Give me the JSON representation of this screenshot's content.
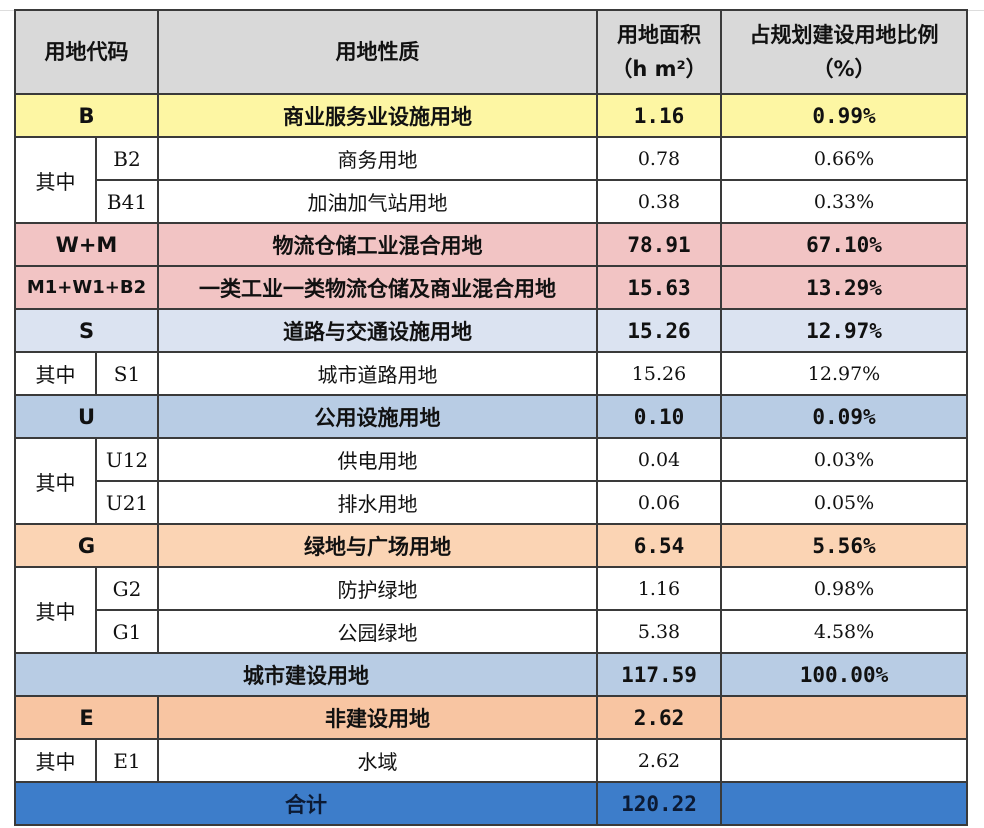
{
  "header": {
    "code": "用地代码",
    "nature": "用地性质",
    "area_line1": "用地面积",
    "area_line2": "（h m²）",
    "ratio_line1": "占规划建设用地比例",
    "ratio_line2": "（%）"
  },
  "rows": {
    "B": {
      "code": "B",
      "name": "商业服务业设施用地",
      "area": "1.16",
      "ratio": "0.99%"
    },
    "B2": {
      "group": "其中",
      "code": "B2",
      "name": "商务用地",
      "area": "0.78",
      "ratio": "0.66%"
    },
    "B41": {
      "code": "B41",
      "name": "加油加气站用地",
      "area": "0.38",
      "ratio": "0.33%"
    },
    "WM": {
      "code": "W+M",
      "name": "物流仓储工业混合用地",
      "area": "78.91",
      "ratio": "67.10%"
    },
    "M1W1B2": {
      "code": "M1+W1+B2",
      "name": "一类工业一类物流仓储及商业混合用地",
      "area": "15.63",
      "ratio": "13.29%"
    },
    "S": {
      "code": "S",
      "name": "道路与交通设施用地",
      "area": "15.26",
      "ratio": "12.97%"
    },
    "S1": {
      "group": "其中",
      "code": "S1",
      "name": "城市道路用地",
      "area": "15.26",
      "ratio": "12.97%"
    },
    "U": {
      "code": "U",
      "name": "公用设施用地",
      "area": "0.10",
      "ratio": "0.09%"
    },
    "U12": {
      "group": "其中",
      "code": "U12",
      "name": "供电用地",
      "area": "0.04",
      "ratio": "0.03%"
    },
    "U21": {
      "code": "U21",
      "name": "排水用地",
      "area": "0.06",
      "ratio": "0.05%"
    },
    "G": {
      "code": "G",
      "name": "绿地与广场用地",
      "area": "6.54",
      "ratio": "5.56%"
    },
    "G2": {
      "group": "其中",
      "code": "G2",
      "name": "防护绿地",
      "area": "1.16",
      "ratio": "0.98%"
    },
    "G1": {
      "code": "G1",
      "name": "公园绿地",
      "area": "5.38",
      "ratio": "4.58%"
    },
    "urban": {
      "name": "城市建设用地",
      "area": "117.59",
      "ratio": "100.00%"
    },
    "E": {
      "code": "E",
      "name": "非建设用地",
      "area": "2.62",
      "ratio": ""
    },
    "E1": {
      "group": "其中",
      "code": "E1",
      "name": "水域",
      "area": "2.62",
      "ratio": ""
    },
    "total": {
      "name": "合计",
      "area": "120.22",
      "ratio": ""
    }
  }
}
